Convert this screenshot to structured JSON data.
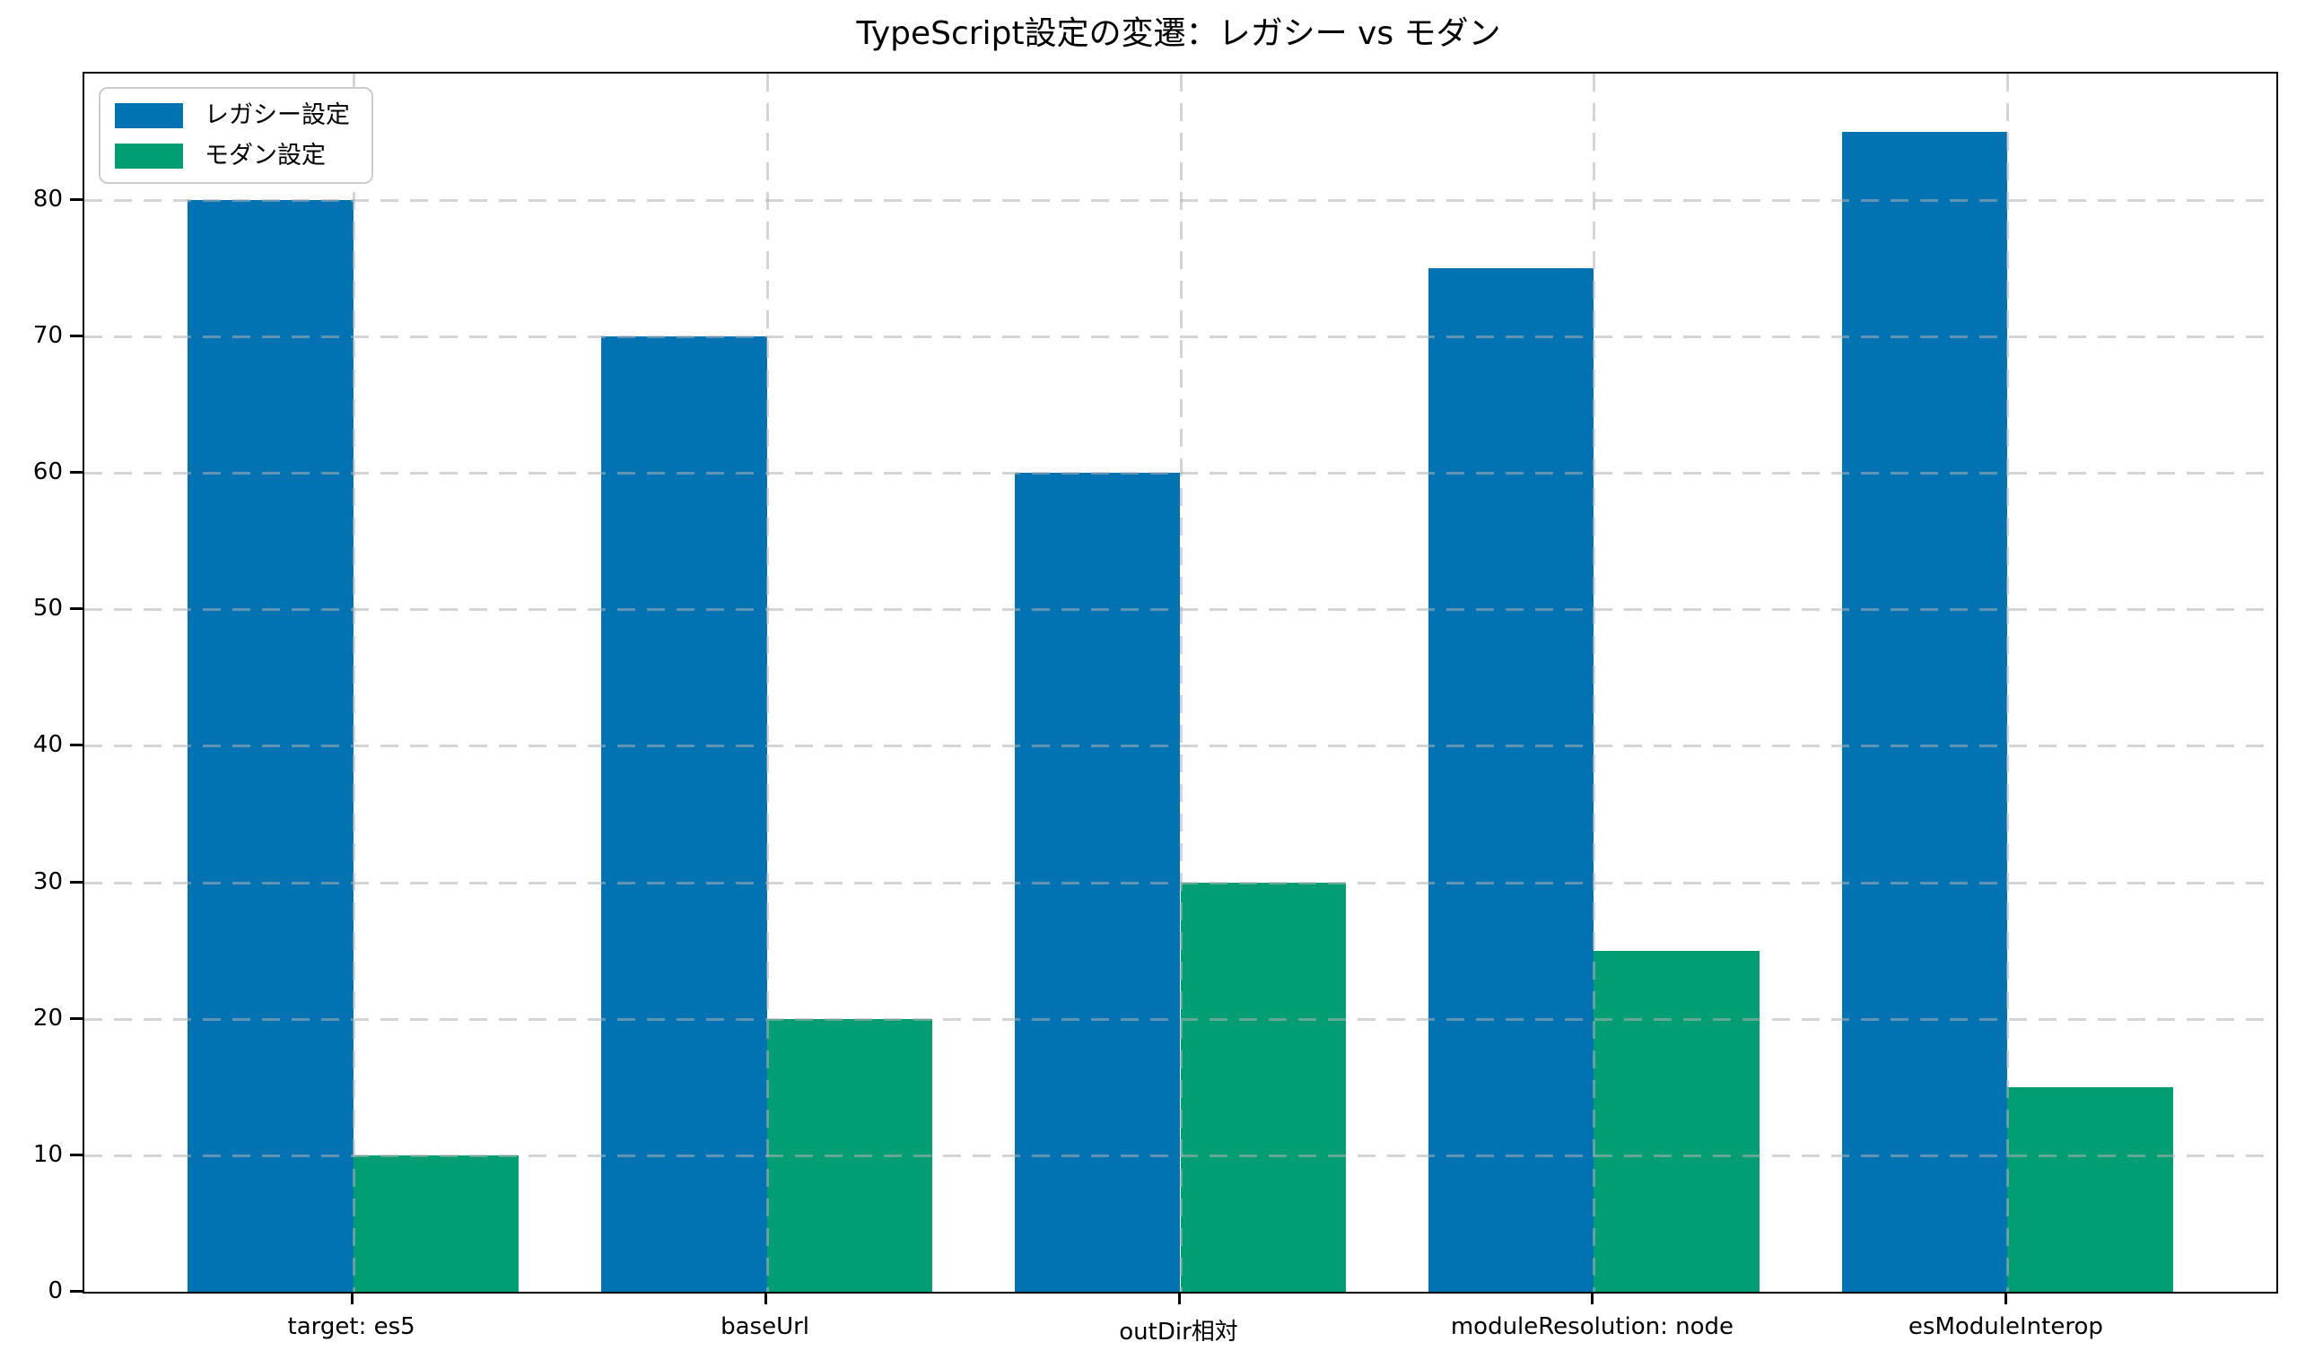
{
  "chart_data": {
    "type": "bar",
    "title": "TypeScript設定の変遷：レガシー vs モダン",
    "categories": [
      "target: es5",
      "baseUrl",
      "outDir相対",
      "moduleResolution: node",
      "esModuleInterop"
    ],
    "series": [
      {
        "name": "レガシー設定",
        "color": "#0173B2",
        "values": [
          80,
          70,
          60,
          75,
          85
        ]
      },
      {
        "name": "モダン設定",
        "color": "#029E73",
        "values": [
          10,
          20,
          30,
          25,
          15
        ]
      }
    ],
    "xlabel": "",
    "ylabel": "",
    "ylim": [
      0,
      89.25
    ],
    "xlim": [
      -0.65,
      4.65
    ],
    "yticks": [
      0,
      10,
      20,
      30,
      40,
      50,
      60,
      70,
      80
    ],
    "bar_width": 0.4,
    "grid": true,
    "grid_style": "dashed",
    "grid_color": "#b0b0b0",
    "legend_position": "upper-left",
    "axis_color": "#000000",
    "background_color": "#ffffff"
  }
}
